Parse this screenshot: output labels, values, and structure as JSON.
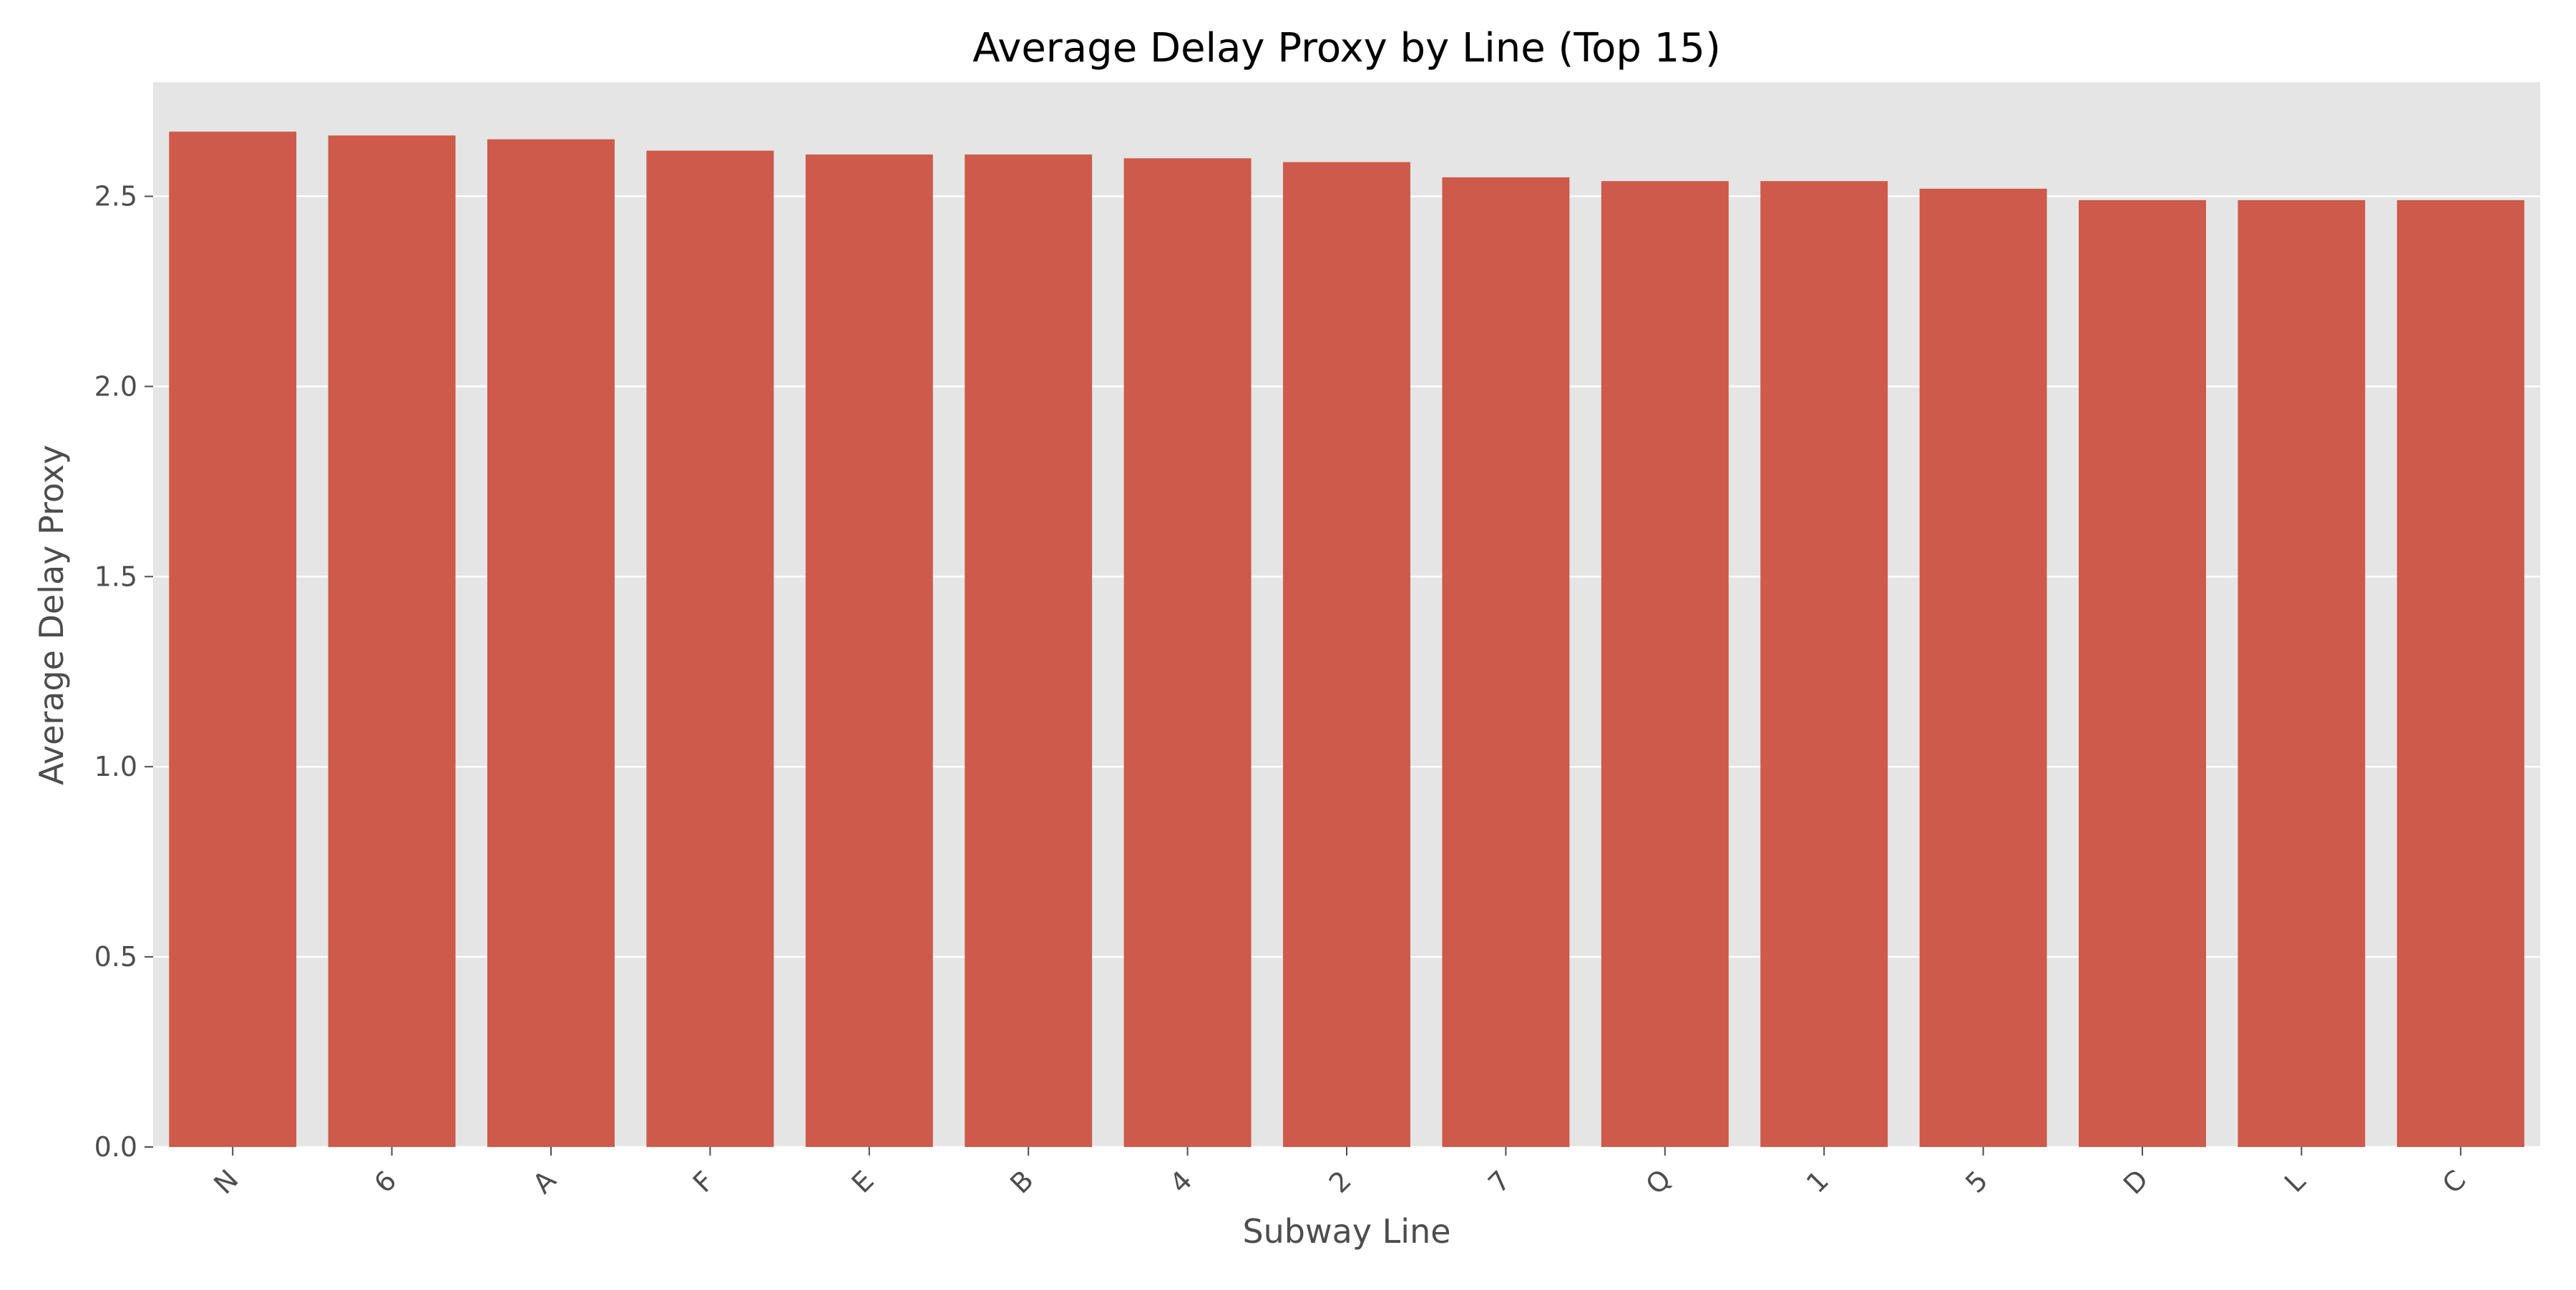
{
  "chart_data": {
    "type": "bar",
    "title": "Average Delay Proxy by Line (Top 15)",
    "xlabel": "Subway Line",
    "ylabel": "Average Delay Proxy",
    "categories": [
      "N",
      "6",
      "A",
      "F",
      "E",
      "B",
      "4",
      "2",
      "7",
      "Q",
      "1",
      "5",
      "D",
      "L",
      "C"
    ],
    "values": [
      2.67,
      2.66,
      2.65,
      2.62,
      2.61,
      2.61,
      2.6,
      2.59,
      2.55,
      2.54,
      2.54,
      2.52,
      2.49,
      2.49,
      2.49
    ],
    "ylim": [
      0,
      2.8
    ],
    "yticks": [
      0.0,
      0.5,
      1.0,
      1.5,
      2.0,
      2.5
    ],
    "ytick_labels": [
      "0.0",
      "0.5",
      "1.0",
      "1.5",
      "2.0",
      "2.5"
    ],
    "grid": true,
    "xtick_rotation_deg": 45,
    "colors": {
      "bar": "#cd5a4a",
      "plot_background": "#e5e5e5",
      "grid": "#ffffff"
    }
  }
}
